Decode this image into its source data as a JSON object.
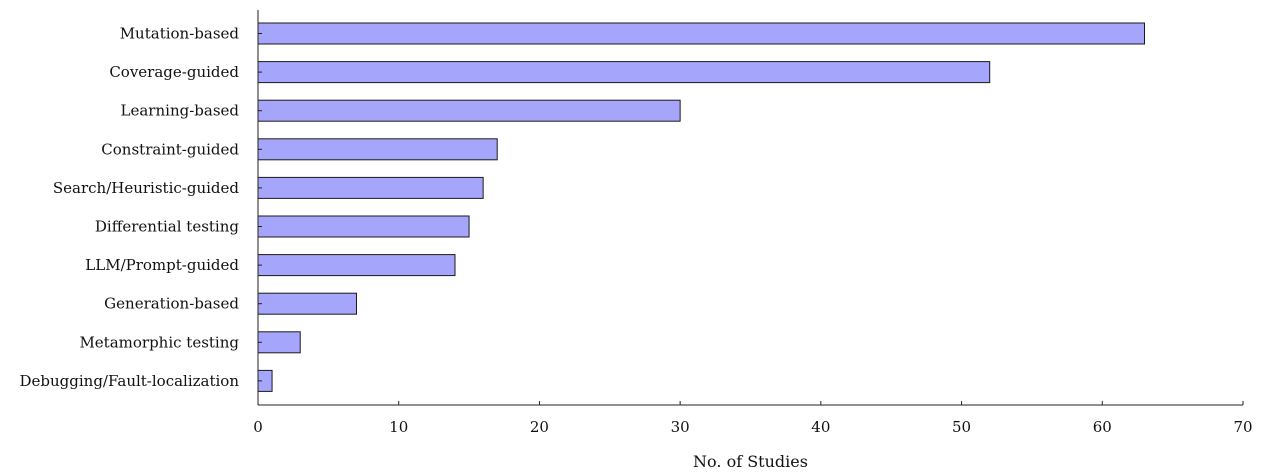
{
  "chart_data": {
    "type": "bar",
    "orientation": "horizontal",
    "categories": [
      "Mutation-based",
      "Coverage-guided",
      "Learning-based",
      "Constraint-guided",
      "Search/Heuristic-guided",
      "Differential testing",
      "LLM/Prompt-guided",
      "Generation-based",
      "Metamorphic testing",
      "Debugging/Fault-localization"
    ],
    "values": [
      63,
      52,
      30,
      17,
      16,
      15,
      14,
      7,
      3,
      1
    ],
    "title": "",
    "xlabel": "No. of Studies",
    "ylabel": "",
    "xlim": [
      0,
      70
    ],
    "xticks": [
      0,
      10,
      20,
      30,
      40,
      50,
      60,
      70
    ],
    "grid": false,
    "colors": {
      "bar_fill": "#a5a5fb",
      "bar_stroke": "#1a1a1a",
      "axis": "#222222"
    }
  }
}
